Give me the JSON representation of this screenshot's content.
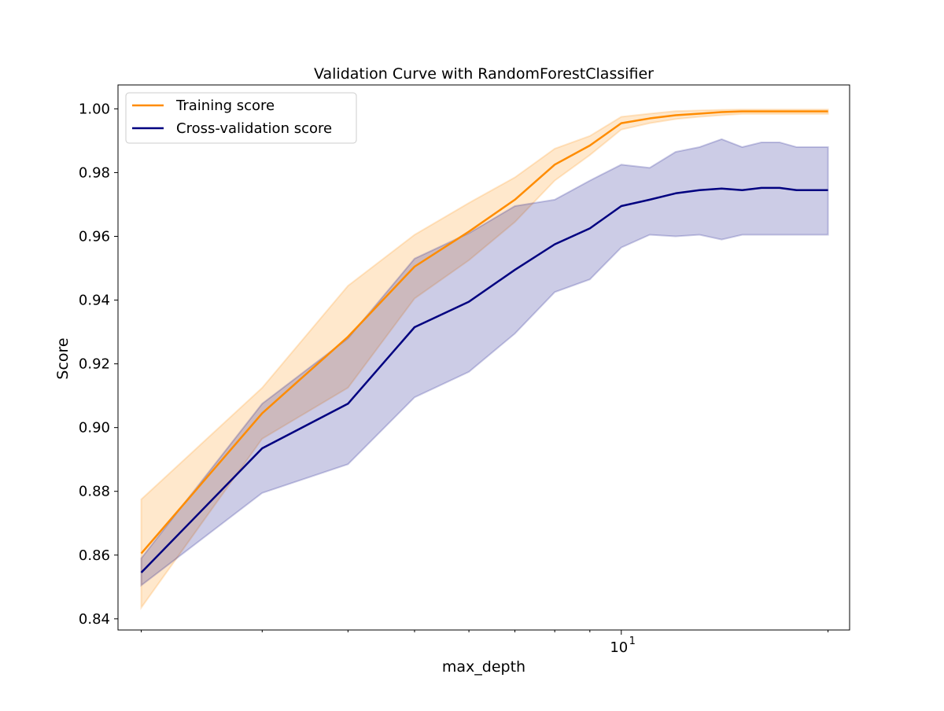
{
  "chart_data": {
    "type": "line",
    "title": "Validation Curve with RandomForestClassifier",
    "xlabel": "max_depth",
    "ylabel": "Score",
    "xscale": "log",
    "x_tick_labels": [
      {
        "base": "10",
        "exp": "1",
        "value": 10
      }
    ],
    "y_ticks": [
      0.84,
      0.86,
      0.88,
      0.9,
      0.92,
      0.94,
      0.96,
      0.98,
      1.0
    ],
    "y_tick_labels": [
      "0.84",
      "0.86",
      "0.88",
      "0.90",
      "0.92",
      "0.94",
      "0.96",
      "0.98",
      "1.00"
    ],
    "xlim": [
      1.85,
      21.5
    ],
    "ylim": [
      0.8365,
      1.0075
    ],
    "grid": false,
    "legend_position": "upper-left",
    "x": [
      2,
      3,
      4,
      5,
      6,
      7,
      8,
      9,
      10,
      11,
      12,
      13,
      14,
      15,
      16,
      17,
      18,
      19,
      20
    ],
    "series": [
      {
        "name": "Training score",
        "color": "#ff8c00",
        "mean": [
          0.8605,
          0.9045,
          0.9285,
          0.9505,
          0.9615,
          0.9715,
          0.9825,
          0.9885,
          0.9955,
          0.997,
          0.998,
          0.9985,
          0.999,
          0.9992,
          0.9992,
          0.9992,
          0.9992,
          0.9992,
          0.9992
        ],
        "lower": [
          0.8435,
          0.8965,
          0.9125,
          0.9405,
          0.9525,
          0.9645,
          0.9775,
          0.9855,
          0.9935,
          0.9955,
          0.9968,
          0.9975,
          0.998,
          0.9984,
          0.9984,
          0.9984,
          0.9984,
          0.9984,
          0.9984
        ],
        "upper": [
          0.8775,
          0.9125,
          0.9445,
          0.9605,
          0.9705,
          0.9785,
          0.9875,
          0.9915,
          0.9975,
          0.9985,
          0.9993,
          0.9995,
          0.9997,
          0.9998,
          0.9998,
          0.9998,
          0.9998,
          0.9998,
          0.9998
        ]
      },
      {
        "name": "Cross-validation score",
        "color": "#000080",
        "mean": [
          0.8545,
          0.8935,
          0.9075,
          0.9315,
          0.9395,
          0.9495,
          0.9575,
          0.9625,
          0.9695,
          0.9715,
          0.9735,
          0.9745,
          0.975,
          0.9745,
          0.9752,
          0.9752,
          0.9745,
          0.9745,
          0.9745
        ],
        "lower": [
          0.8505,
          0.8795,
          0.8885,
          0.9095,
          0.9175,
          0.9295,
          0.9425,
          0.9465,
          0.9565,
          0.9605,
          0.96,
          0.9605,
          0.959,
          0.9605,
          0.9605,
          0.9605,
          0.9605,
          0.9605,
          0.9605
        ],
        "upper": [
          0.859,
          0.9075,
          0.928,
          0.953,
          0.961,
          0.9695,
          0.9715,
          0.9775,
          0.9825,
          0.9815,
          0.9865,
          0.988,
          0.9905,
          0.988,
          0.9895,
          0.9895,
          0.988,
          0.988,
          0.988
        ]
      }
    ]
  }
}
